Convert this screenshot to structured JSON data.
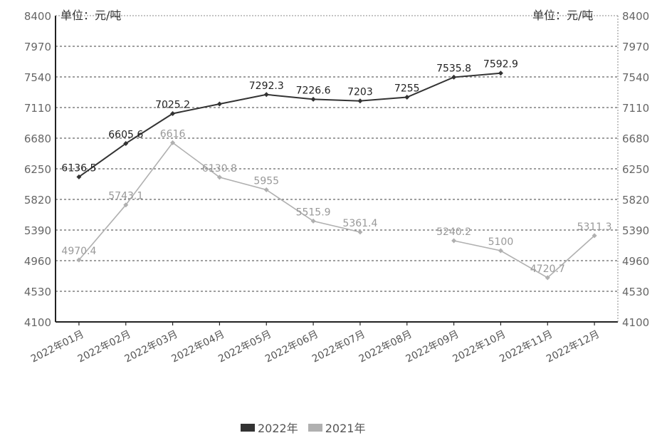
{
  "chart_data": {
    "type": "line",
    "unit_left": "单位：元/吨",
    "unit_right": "单位：元/吨",
    "categories": [
      "2022年01月",
      "2022年02月",
      "2022年03月",
      "2022年04月",
      "2022年05月",
      "2022年06月",
      "2022年07月",
      "2022年08月",
      "2022年09月",
      "2022年10月",
      "2022年11月",
      "2022年12月"
    ],
    "yticks_left": [
      "8400",
      "7970",
      "7540",
      "7110",
      "6680",
      "6250",
      "5820",
      "5390",
      "4960",
      "4530",
      "4100"
    ],
    "yticks_right": [
      "8400",
      "7970",
      "7540",
      "7110",
      "6680",
      "6250",
      "5820",
      "5390",
      "4960",
      "4530",
      "4100"
    ],
    "ylim": [
      4100,
      8400
    ],
    "series": [
      {
        "name": "2022年",
        "color": "#333333",
        "values": [
          6136.5,
          6605.6,
          7025.2,
          7160,
          7292.3,
          7226.6,
          7203,
          7255,
          7535.8,
          7592.9,
          null,
          null
        ],
        "labels": [
          "6136.5",
          "6605.6",
          "7025.2",
          "",
          "7292.3",
          "7226.6",
          "7203",
          "7255",
          "7535.8",
          "7592.9",
          "",
          ""
        ]
      },
      {
        "name": "2021年",
        "color": "#b0b0b0",
        "values": [
          4970.4,
          5743.1,
          6616,
          6130.8,
          5955,
          5515.9,
          5361.4,
          null,
          5240.2,
          5100,
          4720.7,
          5311.3
        ],
        "labels": [
          "4970.4",
          "5743.1",
          "6616",
          "6130.8",
          "5955",
          "5515.9",
          "5361.4",
          "",
          "5240.2",
          "5100",
          "4720.7",
          "5311.3"
        ]
      }
    ],
    "grid": true,
    "legend_position": "bottom"
  },
  "legend": {
    "items": [
      "2022年",
      "2021年"
    ]
  }
}
